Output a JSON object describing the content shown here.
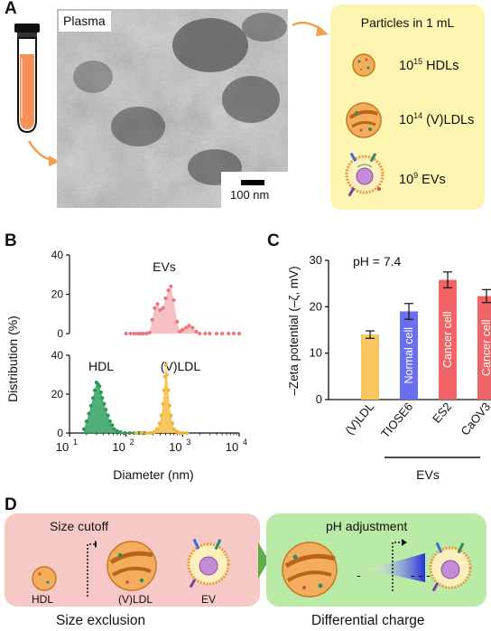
{
  "panel_a": {
    "letter": "A",
    "tem_label": "Plasma",
    "scale_label": "100 nm",
    "box_title": "Particles in 1 mL",
    "rows": [
      {
        "base": "10",
        "exp": "15",
        "name": " HDLs"
      },
      {
        "base": "10",
        "exp": "14",
        "name": " (V)LDLs"
      },
      {
        "base": "10",
        "exp": "9",
        "name": " EVs"
      }
    ]
  },
  "panel_b": {
    "letter": "B",
    "ylabel": "Distribution (%)",
    "xlabel": "Diameter (nm)",
    "top_label": "EVs",
    "hdl_label": "HDL",
    "vldl_label": "(V)LDL",
    "yticks": [
      "0",
      "20",
      "40"
    ],
    "xticks": [
      {
        "base": "10",
        "exp": "1"
      },
      {
        "base": "10",
        "exp": "2"
      },
      {
        "base": "10",
        "exp": "3"
      },
      {
        "base": "10",
        "exp": "4"
      }
    ]
  },
  "panel_c": {
    "letter": "C",
    "ylabel": "–Zeta potential (–ζ, mV)",
    "ph_label": "pH = 7.4",
    "yticks": [
      "0",
      "10",
      "20",
      "30"
    ],
    "group_label": "EVs",
    "bars": [
      {
        "category": "(V)LDL",
        "inner": "",
        "color": "#f9c661"
      },
      {
        "category": "TIOSE6",
        "inner": "Normal cell",
        "color": "#6a6ef0"
      },
      {
        "category": "ES2",
        "inner": "Cancer cell",
        "color": "#f06468"
      },
      {
        "category": "CaOV3",
        "inner": "Cancer cell",
        "color": "#f06468"
      }
    ]
  },
  "panel_d": {
    "letter": "D",
    "size_cutoff": "Size cutoff",
    "hdl": "HDL",
    "vldl": "(V)LDL",
    "ev": "EV",
    "size_exclusion": "Size exclusion",
    "ph_adjustment": "pH adjustment",
    "minus1": "-",
    "minus2": "- - -",
    "differential_charge": "Differential charge"
  },
  "chart_data": [
    {
      "type": "area",
      "xscale": "log",
      "xlabel": "Diameter (nm)",
      "ylabel": "Distribution (%)",
      "xlim": [
        10,
        10000
      ],
      "ylim": [
        0,
        40
      ],
      "series": [
        {
          "name": "EVs",
          "color": "#e9787d",
          "x": [
            100,
            120,
            140,
            160,
            180,
            200,
            230,
            260,
            290,
            320,
            360,
            400,
            450,
            500,
            560,
            620,
            700,
            800,
            900,
            1000,
            1150,
            1300,
            1500,
            1750,
            2000,
            2500,
            3000,
            4000,
            5000,
            6500,
            8000,
            10000
          ],
          "y": [
            0,
            0,
            0,
            0,
            0,
            0,
            0,
            0.5,
            7,
            13,
            15,
            12,
            13,
            18,
            22,
            24,
            17,
            6,
            1,
            2,
            3,
            4,
            3,
            1,
            0,
            0,
            0,
            0,
            0,
            0,
            0,
            0
          ]
        },
        {
          "name": "HDL",
          "color": "#2e9a5a",
          "x": [
            18,
            20,
            22,
            24,
            26,
            28,
            30,
            32,
            34,
            36,
            38,
            41,
            44,
            48,
            52,
            57,
            62,
            70,
            80,
            95,
            115,
            140,
            170,
            210
          ],
          "y": [
            2,
            6,
            10,
            14,
            18,
            22,
            26,
            25,
            24,
            21,
            18,
            15,
            12,
            9,
            6,
            4,
            2,
            1,
            0.5,
            0,
            0,
            0,
            0,
            0
          ]
        },
        {
          "name": "(V)LDL",
          "color": "#f5b53d",
          "x": [
            150,
            190,
            230,
            270,
            310,
            350,
            390,
            420,
            450,
            470,
            490,
            510,
            530,
            560,
            590,
            620,
            660,
            700,
            760,
            820,
            900,
            1000,
            1200
          ],
          "y": [
            0,
            0,
            0,
            0,
            0.5,
            2,
            5,
            9,
            15,
            22,
            29,
            35,
            30,
            22,
            14,
            9,
            5,
            2,
            1,
            0.5,
            0,
            0,
            0
          ]
        }
      ]
    },
    {
      "type": "bar",
      "ylabel": "–Zeta potential (–ζ, mV)",
      "ylim": [
        0,
        30
      ],
      "categories": [
        "(V)LDL",
        "TIOSE6",
        "ES2",
        "CaOV3"
      ],
      "values": [
        14.0,
        19.0,
        25.8,
        22.3
      ],
      "errors": [
        0.8,
        1.7,
        1.7,
        1.4
      ]
    }
  ]
}
